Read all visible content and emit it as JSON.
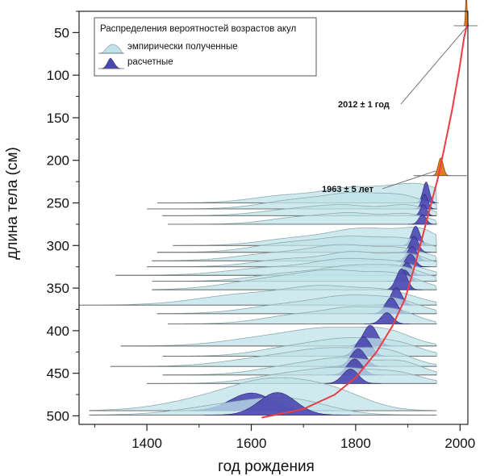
{
  "chart_data": {
    "type": "ridgeline",
    "title": "",
    "xlabel": "год рождения",
    "ylabel": "длина тела (см)",
    "xlim": [
      1270,
      2015
    ],
    "ylim": [
      25,
      510
    ],
    "x_ticks": [
      1400,
      1600,
      1800,
      2000
    ],
    "y_ticks": [
      50,
      100,
      150,
      200,
      250,
      300,
      350,
      400,
      450,
      500
    ],
    "legend": {
      "title": "Распределения вероятностей возрастов акул",
      "placement": "top-left",
      "entries": [
        {
          "label": "эмпирически полученные",
          "color": "#bfe3e8"
        },
        {
          "label": "расчетные",
          "color": "#4b47b0"
        }
      ]
    },
    "colors": {
      "empirical_fill": "#bfe3e8",
      "empirical_stroke": "#8fa9ad",
      "calculated_fill": "#4b47b0",
      "calculated_stroke": "#2a2770",
      "growth_curve": "#ee3b45",
      "recent_fill": "#e07b1e",
      "baseline": "#666666"
    },
    "growth_curve": {
      "points": [
        [
          1620,
          502
        ],
        [
          1700,
          492
        ],
        [
          1760,
          475
        ],
        [
          1800,
          455
        ],
        [
          1840,
          425
        ],
        [
          1870,
          395
        ],
        [
          1895,
          362
        ],
        [
          1915,
          320
        ],
        [
          1930,
          285
        ],
        [
          1945,
          250
        ],
        [
          1958,
          220
        ],
        [
          1970,
          185
        ],
        [
          1985,
          140
        ],
        [
          1998,
          95
        ],
        [
          2008,
          55
        ],
        [
          2013,
          42
        ]
      ]
    },
    "recent_samples": [
      {
        "label": "2012 ± 1 год",
        "year": 2012,
        "length": 42,
        "height": 40,
        "sd": 1.5
      },
      {
        "label": "1963 ± 5 лет",
        "year": 1963,
        "length": 218,
        "height": 22,
        "sd": 5
      }
    ],
    "series": [
      {
        "length": 250,
        "start": 1420,
        "emp": [
          [
            1680,
            10,
            45
          ],
          [
            1790,
            14,
            30
          ],
          [
            1880,
            16,
            30
          ],
          [
            1940,
            14,
            25
          ]
        ],
        "calc": {
          "mean": 1935,
          "sd": 6,
          "height": 26
        }
      },
      {
        "length": 257,
        "start": 1400,
        "emp": [
          [
            1700,
            12,
            45
          ],
          [
            1800,
            14,
            30
          ],
          [
            1890,
            15,
            28
          ]
        ],
        "calc": {
          "mean": 1932,
          "sd": 6,
          "height": 18
        }
      },
      {
        "length": 265,
        "start": 1430,
        "emp": [
          [
            1690,
            8,
            45
          ],
          [
            1790,
            10,
            35
          ],
          [
            1900,
            12,
            25
          ]
        ],
        "calc": {
          "mean": 1930,
          "sd": 6,
          "height": 14
        }
      },
      {
        "length": 275,
        "start": 1440,
        "emp": [
          [
            1700,
            9,
            40
          ],
          [
            1800,
            11,
            30
          ],
          [
            1900,
            12,
            25
          ]
        ],
        "calc": {
          "mean": 1928,
          "sd": 7,
          "height": 12
        }
      },
      {
        "length": 300,
        "start": 1450,
        "emp": [
          [
            1700,
            10,
            45
          ],
          [
            1800,
            14,
            30
          ],
          [
            1880,
            14,
            30
          ],
          [
            1930,
            12,
            20
          ]
        ],
        "calc": {
          "mean": 1915,
          "sd": 8,
          "height": 24
        }
      },
      {
        "length": 308,
        "start": 1420,
        "emp": [
          [
            1680,
            12,
            45
          ],
          [
            1800,
            16,
            35
          ],
          [
            1900,
            14,
            28
          ]
        ],
        "calc": {
          "mean": 1912,
          "sd": 8,
          "height": 20
        }
      },
      {
        "length": 318,
        "start": 1410,
        "emp": [
          [
            1660,
            10,
            50
          ],
          [
            1780,
            16,
            35
          ],
          [
            1890,
            14,
            30
          ]
        ],
        "calc": {
          "mean": 1908,
          "sd": 9,
          "height": 18
        }
      },
      {
        "length": 325,
        "start": 1400,
        "emp": [
          [
            1680,
            10,
            45
          ],
          [
            1800,
            16,
            30
          ],
          [
            1900,
            15,
            25
          ]
        ],
        "calc": {
          "mean": 1905,
          "sd": 9,
          "height": 16
        }
      },
      {
        "length": 335,
        "start": 1340,
        "emp": [
          [
            1650,
            10,
            55
          ],
          [
            1780,
            16,
            35
          ],
          [
            1880,
            14,
            30
          ]
        ],
        "calc": {
          "mean": 1898,
          "sd": 9,
          "height": 16
        }
      },
      {
        "length": 342,
        "start": 1410,
        "emp": [
          [
            1680,
            10,
            45
          ],
          [
            1800,
            16,
            35
          ],
          [
            1890,
            14,
            28
          ]
        ],
        "calc": {
          "mean": 1894,
          "sd": 9,
          "height": 14
        }
      },
      {
        "length": 352,
        "start": 1410,
        "emp": [
          [
            1650,
            14,
            55
          ],
          [
            1770,
            18,
            40
          ],
          [
            1880,
            16,
            30
          ]
        ],
        "calc": {
          "mean": 1888,
          "sd": 10,
          "height": 26
        }
      },
      {
        "length": 370,
        "start": 1270,
        "emp": [
          [
            1600,
            14,
            60
          ],
          [
            1740,
            18,
            40
          ],
          [
            1860,
            16,
            35
          ]
        ],
        "calc": {
          "mean": 1878,
          "sd": 10,
          "height": 22
        }
      },
      {
        "length": 380,
        "start": 1420,
        "emp": [
          [
            1680,
            12,
            50
          ],
          [
            1790,
            16,
            35
          ],
          [
            1880,
            14,
            30
          ]
        ],
        "calc": {
          "mean": 1868,
          "sd": 11,
          "height": 20
        }
      },
      {
        "length": 392,
        "start": 1440,
        "emp": [
          [
            1700,
            12,
            45
          ],
          [
            1800,
            15,
            30
          ],
          [
            1880,
            14,
            25
          ]
        ],
        "calc": {
          "mean": 1860,
          "sd": 11,
          "height": 14
        }
      },
      {
        "length": 418,
        "start": 1350,
        "emp": [
          [
            1650,
            12,
            55
          ],
          [
            1760,
            16,
            40
          ],
          [
            1860,
            16,
            30
          ]
        ],
        "calc": {
          "mean": 1828,
          "sd": 13,
          "height": 26
        }
      },
      {
        "length": 430,
        "start": 1430,
        "emp": [
          [
            1690,
            12,
            45
          ],
          [
            1790,
            16,
            35
          ],
          [
            1880,
            14,
            30
          ]
        ],
        "calc": {
          "mean": 1815,
          "sd": 14,
          "height": 24
        }
      },
      {
        "length": 442,
        "start": 1330,
        "emp": [
          [
            1650,
            12,
            55
          ],
          [
            1760,
            16,
            40
          ],
          [
            1860,
            16,
            30
          ]
        ],
        "calc": {
          "mean": 1805,
          "sd": 14,
          "height": 22
        }
      },
      {
        "length": 452,
        "start": 1430,
        "emp": [
          [
            1690,
            12,
            45
          ],
          [
            1790,
            16,
            35
          ],
          [
            1890,
            14,
            25
          ]
        ],
        "calc": {
          "mean": 1798,
          "sd": 14,
          "height": 20
        }
      },
      {
        "length": 462,
        "start": 1400,
        "emp": [
          [
            1680,
            12,
            45
          ],
          [
            1780,
            14,
            35
          ],
          [
            1880,
            12,
            30
          ]
        ],
        "calc": {
          "mean": 1790,
          "sd": 15,
          "height": 18
        }
      },
      {
        "length": 494,
        "start": 1290,
        "emp": [
          [
            1550,
            18,
            60
          ],
          [
            1650,
            26,
            45
          ],
          [
            1760,
            20,
            40
          ]
        ],
        "calc": {
          "mean": 1600,
          "sd": 40,
          "height": 22
        }
      },
      {
        "length": 499,
        "start": 1290,
        "emp": [
          [
            1560,
            12,
            55
          ],
          [
            1680,
            16,
            45
          ]
        ],
        "calc": {
          "mean": 1650,
          "sd": 35,
          "height": 28
        }
      }
    ]
  }
}
